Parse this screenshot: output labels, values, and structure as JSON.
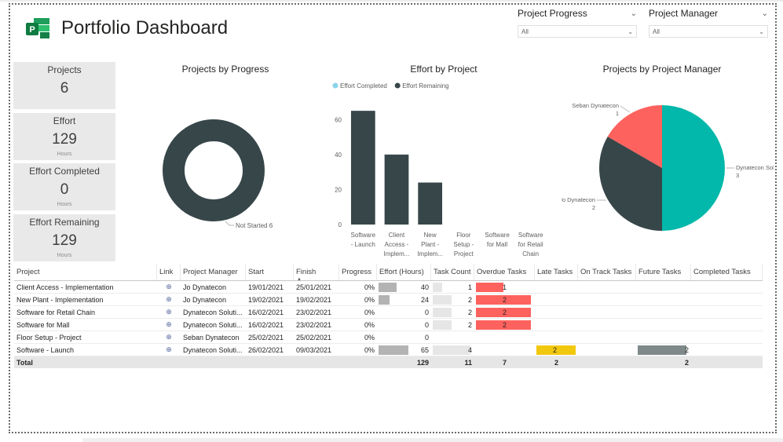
{
  "header": {
    "title": "Portfolio Dashboard",
    "logo": "project-logo"
  },
  "slicers": [
    {
      "label": "Project Progress",
      "value": "All"
    },
    {
      "label": "Project Manager",
      "value": "All"
    }
  ],
  "cards": [
    {
      "label": "Projects",
      "value": "6",
      "unit": ""
    },
    {
      "label": "Effort",
      "value": "129",
      "unit": "Hours"
    },
    {
      "label": "Effort Completed",
      "value": "0",
      "unit": "Hours"
    },
    {
      "label": "Effort Remaining",
      "value": "129",
      "unit": "Hours"
    }
  ],
  "chart_data": [
    {
      "type": "pie",
      "donut": true,
      "title": "Projects by Progress",
      "categories": [
        "Not Started"
      ],
      "values": [
        6
      ],
      "colors": [
        "#374649"
      ],
      "data_labels": [
        "Not Started 6"
      ]
    },
    {
      "type": "bar",
      "title": "Effort by Project",
      "legend": [
        {
          "name": "Effort Completed",
          "color": "#8ad4eb"
        },
        {
          "name": "Effort Remaining",
          "color": "#374649"
        }
      ],
      "legend_position": "top-left",
      "categories": [
        [
          "Software",
          "- Launch"
        ],
        [
          "Client",
          "Access -",
          "Implem..."
        ],
        [
          "New",
          "Plant -",
          "Implem..."
        ],
        [
          "Floor",
          "Setup -",
          "Project"
        ],
        [
          "Software",
          "for Mall"
        ],
        [
          "Software",
          "for Retail",
          "Chain"
        ]
      ],
      "series": [
        {
          "name": "Effort Completed",
          "values": [
            0,
            0,
            0,
            0,
            0,
            0
          ]
        },
        {
          "name": "Effort Remaining",
          "values": [
            65,
            40,
            24,
            0,
            0,
            0
          ]
        }
      ],
      "yticks": [
        0,
        20,
        40,
        60
      ],
      "ylim": [
        0,
        70
      ],
      "grid": false
    },
    {
      "type": "pie",
      "title": "Projects by Project Manager",
      "categories": [
        "Dynatecon Sol...",
        "Jo Dynatecon",
        "Seban Dynatecon"
      ],
      "values": [
        3,
        2,
        1
      ],
      "colors": [
        "#01b8aa",
        "#374649",
        "#fd625e"
      ],
      "data_labels": [
        {
          "name": "Dynatecon Sol...",
          "value": "3"
        },
        {
          "name": "Jo Dynatecon",
          "value": "2"
        },
        {
          "name": "Seban Dynatecon",
          "value": "1"
        }
      ]
    }
  ],
  "table": {
    "columns": [
      "Project",
      "Link",
      "Project Manager",
      "Start",
      "Finish",
      "Progress",
      "Effort (Hours)",
      "Task Count",
      "Overdue Tasks",
      "Late Tasks",
      "On Track Tasks",
      "Future Tasks",
      "Completed Tasks"
    ],
    "rows": [
      {
        "project": "Client Access - Implementation",
        "manager": "Jo Dynatecon",
        "start": "19/01/2021",
        "finish": "25/01/2021",
        "progress": "0%",
        "effort": "40",
        "effort_val": 40,
        "tasks": "1",
        "tasks_val": 1,
        "overdue": "1",
        "overdue_val": 1,
        "late": "",
        "late_val": 0,
        "ontrack": "",
        "future": "",
        "future_val": 0,
        "completed": ""
      },
      {
        "project": "New Plant - Implementation",
        "manager": "Jo Dynatecon",
        "start": "19/02/2021",
        "finish": "19/02/2021",
        "progress": "0%",
        "effort": "24",
        "effort_val": 24,
        "tasks": "2",
        "tasks_val": 2,
        "overdue": "2",
        "overdue_val": 2,
        "late": "",
        "late_val": 0,
        "ontrack": "",
        "future": "",
        "future_val": 0,
        "completed": ""
      },
      {
        "project": "Software for Retail Chain",
        "manager": "Dynatecon Soluti...",
        "start": "16/02/2021",
        "finish": "23/02/2021",
        "progress": "0%",
        "effort": "0",
        "effort_val": 0,
        "tasks": "2",
        "tasks_val": 2,
        "overdue": "2",
        "overdue_val": 2,
        "late": "",
        "late_val": 0,
        "ontrack": "",
        "future": "",
        "future_val": 0,
        "completed": ""
      },
      {
        "project": "Software for Mall",
        "manager": "Dynatecon Soluti...",
        "start": "16/02/2021",
        "finish": "23/02/2021",
        "progress": "0%",
        "effort": "0",
        "effort_val": 0,
        "tasks": "2",
        "tasks_val": 2,
        "overdue": "2",
        "overdue_val": 2,
        "late": "",
        "late_val": 0,
        "ontrack": "",
        "future": "",
        "future_val": 0,
        "completed": ""
      },
      {
        "project": "Floor Setup - Project",
        "manager": "Seban Dynatecon",
        "start": "25/02/2021",
        "finish": "25/02/2021",
        "progress": "0%",
        "effort": "0",
        "effort_val": 0,
        "tasks": "",
        "tasks_val": 0,
        "overdue": "",
        "overdue_val": 0,
        "late": "",
        "late_val": 0,
        "ontrack": "",
        "future": "",
        "future_val": 0,
        "completed": ""
      },
      {
        "project": "Software - Launch",
        "manager": "Dynatecon Soluti...",
        "start": "26/02/2021",
        "finish": "09/03/2021",
        "progress": "0%",
        "effort": "65",
        "effort_val": 65,
        "tasks": "4",
        "tasks_val": 4,
        "overdue": "",
        "overdue_val": 0,
        "late": "2",
        "late_val": 2,
        "ontrack": "",
        "future": "2",
        "future_val": 2,
        "completed": ""
      }
    ],
    "total": {
      "label": "Total",
      "effort": "129",
      "tasks": "11",
      "overdue": "7",
      "late": "2",
      "ontrack": "",
      "future": "2",
      "completed": ""
    },
    "colors": {
      "effort_bar": "#b3b3b3",
      "effort_bar_max": "#a6a6a6",
      "tasks_bar": "#e6e6e6",
      "overdue_bar": "#fd625e",
      "late_bar": "#f2c80f",
      "future_bar": "#7f898a"
    }
  }
}
